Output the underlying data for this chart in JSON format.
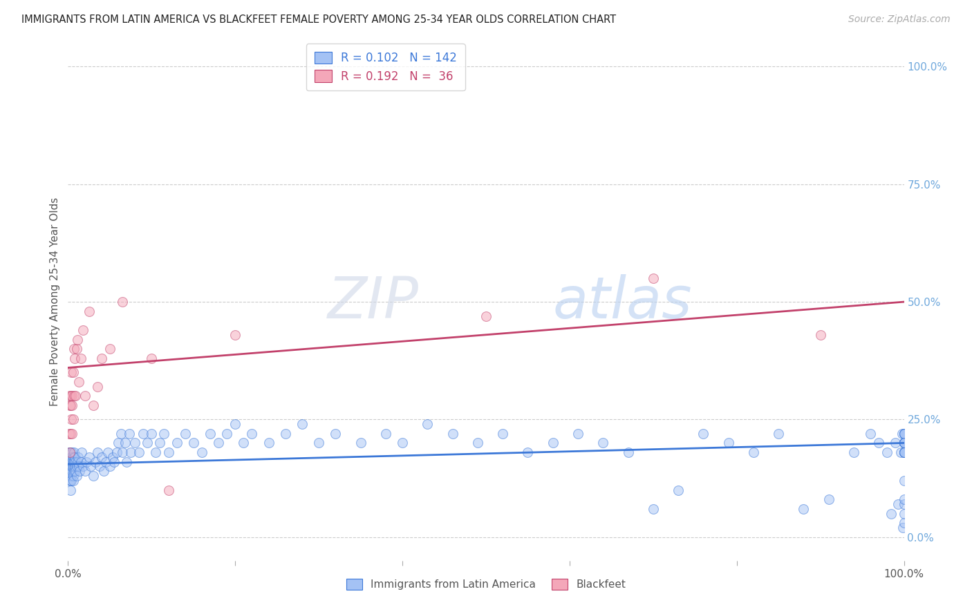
{
  "title": "IMMIGRANTS FROM LATIN AMERICA VS BLACKFEET FEMALE POVERTY AMONG 25-34 YEAR OLDS CORRELATION CHART",
  "source": "Source: ZipAtlas.com",
  "ylabel": "Female Poverty Among 25-34 Year Olds",
  "blue_R": 0.102,
  "blue_N": 142,
  "pink_R": 0.192,
  "pink_N": 36,
  "blue_color": "#a4c2f4",
  "pink_color": "#f4a7b9",
  "blue_line_color": "#3c78d8",
  "pink_line_color": "#c2416b",
  "right_axis_color": "#6fa8dc",
  "watermark_zip": "ZIP",
  "watermark_atlas": "atlas",
  "legend_label_blue": "Immigrants from Latin America",
  "legend_label_pink": "Blackfeet",
  "xlim": [
    0,
    1
  ],
  "ylim": [
    -0.05,
    1.05
  ],
  "plot_ylim_lo": 0.0,
  "plot_ylim_hi": 1.0,
  "xtick_positions": [
    0,
    0.2,
    0.4,
    0.6,
    0.8,
    1.0
  ],
  "ytick_positions": [
    0.0,
    0.25,
    0.5,
    0.75,
    1.0
  ],
  "blue_x": [
    0.001,
    0.001,
    0.001,
    0.002,
    0.002,
    0.002,
    0.002,
    0.002,
    0.003,
    0.003,
    0.003,
    0.003,
    0.003,
    0.003,
    0.003,
    0.004,
    0.004,
    0.004,
    0.004,
    0.004,
    0.005,
    0.005,
    0.005,
    0.005,
    0.006,
    0.006,
    0.006,
    0.006,
    0.006,
    0.007,
    0.007,
    0.007,
    0.008,
    0.008,
    0.009,
    0.009,
    0.01,
    0.01,
    0.011,
    0.012,
    0.013,
    0.014,
    0.015,
    0.016,
    0.018,
    0.02,
    0.022,
    0.025,
    0.027,
    0.03,
    0.033,
    0.035,
    0.038,
    0.04,
    0.043,
    0.045,
    0.048,
    0.05,
    0.053,
    0.055,
    0.058,
    0.06,
    0.063,
    0.065,
    0.068,
    0.07,
    0.073,
    0.075,
    0.08,
    0.085,
    0.09,
    0.095,
    0.1,
    0.105,
    0.11,
    0.115,
    0.12,
    0.13,
    0.14,
    0.15,
    0.16,
    0.17,
    0.18,
    0.19,
    0.2,
    0.21,
    0.22,
    0.24,
    0.26,
    0.28,
    0.3,
    0.32,
    0.35,
    0.38,
    0.4,
    0.43,
    0.46,
    0.49,
    0.52,
    0.55,
    0.58,
    0.61,
    0.64,
    0.67,
    0.7,
    0.73,
    0.76,
    0.79,
    0.82,
    0.85,
    0.88,
    0.91,
    0.94,
    0.96,
    0.97,
    0.98,
    0.985,
    0.99,
    0.993,
    0.996,
    0.998,
    0.999,
    1.0,
    1.0,
    1.0,
    1.0,
    1.0,
    1.0,
    1.0,
    1.0,
    1.0,
    1.0,
    1.0,
    1.0,
    1.0,
    1.0,
    1.0,
    1.0,
    1.0,
    1.0,
    1.0,
    1.0
  ],
  "blue_y": [
    0.14,
    0.16,
    0.18,
    0.13,
    0.15,
    0.17,
    0.12,
    0.18,
    0.14,
    0.16,
    0.1,
    0.12,
    0.15,
    0.17,
    0.18,
    0.13,
    0.15,
    0.16,
    0.12,
    0.17,
    0.14,
    0.16,
    0.15,
    0.18,
    0.13,
    0.12,
    0.15,
    0.17,
    0.16,
    0.14,
    0.16,
    0.18,
    0.15,
    0.17,
    0.14,
    0.16,
    0.13,
    0.15,
    0.16,
    0.17,
    0.15,
    0.14,
    0.16,
    0.18,
    0.15,
    0.14,
    0.16,
    0.17,
    0.15,
    0.13,
    0.16,
    0.18,
    0.15,
    0.17,
    0.14,
    0.16,
    0.18,
    0.15,
    0.17,
    0.16,
    0.18,
    0.2,
    0.22,
    0.18,
    0.2,
    0.16,
    0.22,
    0.18,
    0.2,
    0.18,
    0.22,
    0.2,
    0.22,
    0.18,
    0.2,
    0.22,
    0.18,
    0.2,
    0.22,
    0.2,
    0.18,
    0.22,
    0.2,
    0.22,
    0.24,
    0.2,
    0.22,
    0.2,
    0.22,
    0.24,
    0.2,
    0.22,
    0.2,
    0.22,
    0.2,
    0.24,
    0.22,
    0.2,
    0.22,
    0.18,
    0.2,
    0.22,
    0.2,
    0.18,
    0.06,
    0.1,
    0.22,
    0.2,
    0.18,
    0.22,
    0.06,
    0.08,
    0.18,
    0.22,
    0.2,
    0.18,
    0.05,
    0.2,
    0.07,
    0.18,
    0.22,
    0.02,
    0.2,
    0.18,
    0.22,
    0.18,
    0.03,
    0.2,
    0.18,
    0.05,
    0.22,
    0.07,
    0.2,
    0.18,
    0.22,
    0.2,
    0.08,
    0.18,
    0.2,
    0.22,
    0.2,
    0.12
  ],
  "pink_x": [
    0.001,
    0.002,
    0.002,
    0.002,
    0.003,
    0.003,
    0.003,
    0.004,
    0.004,
    0.005,
    0.005,
    0.005,
    0.006,
    0.006,
    0.007,
    0.007,
    0.008,
    0.009,
    0.01,
    0.011,
    0.013,
    0.015,
    0.018,
    0.02,
    0.025,
    0.03,
    0.035,
    0.04,
    0.05,
    0.065,
    0.1,
    0.12,
    0.2,
    0.5,
    0.7,
    0.9
  ],
  "pink_y": [
    0.22,
    0.28,
    0.3,
    0.18,
    0.3,
    0.22,
    0.28,
    0.25,
    0.35,
    0.3,
    0.22,
    0.28,
    0.35,
    0.25,
    0.4,
    0.3,
    0.38,
    0.3,
    0.4,
    0.42,
    0.33,
    0.38,
    0.44,
    0.3,
    0.48,
    0.28,
    0.32,
    0.38,
    0.4,
    0.5,
    0.38,
    0.1,
    0.43,
    0.47,
    0.55,
    0.43
  ],
  "pink_line_start_y": 0.36,
  "pink_line_end_y": 0.5,
  "blue_line_start_y": 0.155,
  "blue_line_end_y": 0.2
}
